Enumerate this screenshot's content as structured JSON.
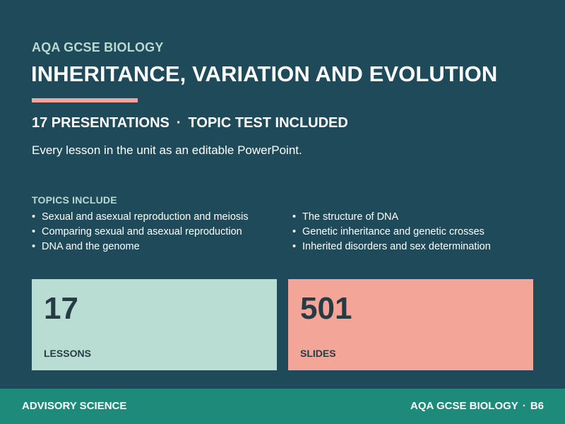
{
  "header": {
    "kicker": "AQA GCSE BIOLOGY",
    "title": "INHERITANCE, VARIATION AND EVOLUTION",
    "subtitle_left": "17 PRESENTATIONS",
    "subtitle_separator": "·",
    "subtitle_right": "TOPIC TEST INCLUDED",
    "tagline": "Every lesson in the unit as an editable PowerPoint."
  },
  "topics": {
    "heading": "TOPICS INCLUDE",
    "left": [
      "Sexual and asexual reproduction and meiosis",
      "Comparing sexual and asexual reproduction",
      "DNA and the genome"
    ],
    "right": [
      "The structure of DNA",
      "Genetic inheritance and genetic crosses",
      "Inherited disorders and sex determination"
    ]
  },
  "stats": [
    {
      "value": "17",
      "label": "LESSONS"
    },
    {
      "value": "501",
      "label": "SLIDES"
    }
  ],
  "footer": {
    "brand": "ADVISORY SCIENCE",
    "course": "AQA GCSE BIOLOGY",
    "separator": "·",
    "unit_code": "B6"
  },
  "colors": {
    "background": "#1e4a5a",
    "accent_salmon": "#f3a597",
    "accent_mint": "#b9dcd3",
    "footer_bar": "#1e8a7a"
  }
}
